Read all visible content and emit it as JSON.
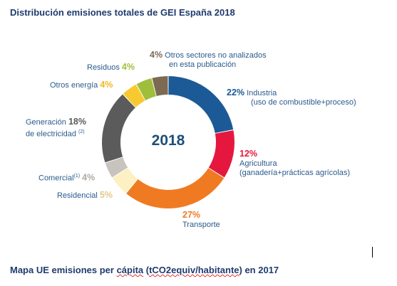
{
  "title": "Distribución emisiones totales de GEI España 2018",
  "subtitle": {
    "pre": "Mapa UE emisiones per ",
    "w1": "cápita",
    "mid1": " (",
    "w2": "tCO2equiv/habitante",
    "post": ") en 2017"
  },
  "chart_data": {
    "type": "pie",
    "center_label": "2018",
    "slices": [
      {
        "pct_label": "22%",
        "value": 22,
        "label": "Industria",
        "label2": "(uso de combustible+proceso)",
        "color": "#1b5a96"
      },
      {
        "pct_label": "12%",
        "value": 12,
        "label": "Agricultura",
        "label2": "(ganadería+prácticas agrícolas)",
        "color": "#e5173f"
      },
      {
        "pct_label": "27%",
        "value": 27,
        "label": "Transporte",
        "label2": "",
        "color": "#f07a22"
      },
      {
        "pct_label": "5%",
        "value": 5,
        "label": "Residencial",
        "label2": "",
        "color": "#fdf0c2"
      },
      {
        "pct_label": "4%",
        "value": 4,
        "label": "Comercial",
        "sup": "(1)",
        "label2": "",
        "color": "#c9c3bd"
      },
      {
        "pct_label": "18%",
        "value": 18,
        "label": "Generación",
        "label2": "de electricidad",
        "sup": "(2)",
        "color": "#5b5b5b"
      },
      {
        "pct_label": "4%",
        "value": 4,
        "label": "Otros energía",
        "label2": "",
        "color": "#f8c92f"
      },
      {
        "pct_label": "4%",
        "value": 4,
        "label": "Residuos",
        "label2": "",
        "color": "#9fbf3c"
      },
      {
        "pct_label": "4%",
        "value": 4,
        "label": "Otros sectores no analizados",
        "label2": "en esta publicación",
        "color": "#7c6a53"
      }
    ]
  }
}
